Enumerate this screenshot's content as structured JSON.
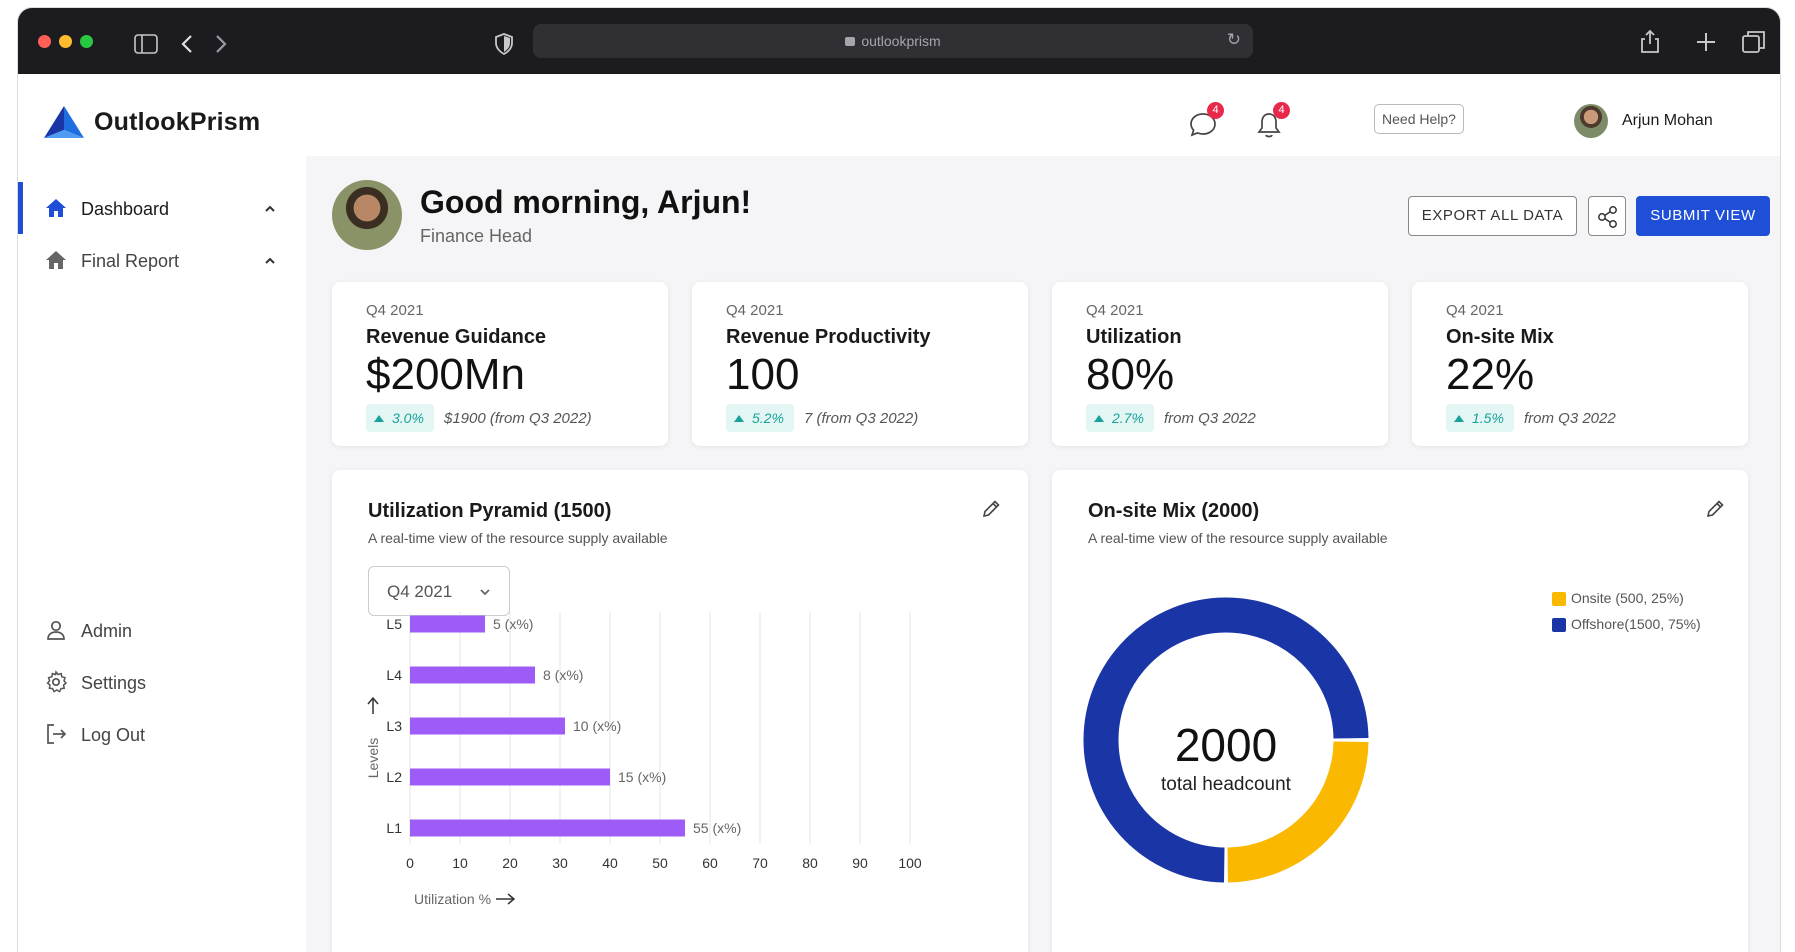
{
  "browser": {
    "url": "outlookprism"
  },
  "app": {
    "brand": "OutlookPrism",
    "brand_color": "#1f4fd6",
    "messages_badge": "4",
    "notifications_badge": "4",
    "help_label": "Need Help?",
    "user_name": "Arjun Mohan"
  },
  "sidebar": {
    "items": [
      {
        "label": "Dashboard",
        "icon": "home-icon"
      },
      {
        "label": "Final Report",
        "icon": "home-icon"
      }
    ],
    "bottom_items": [
      {
        "label": "Admin",
        "icon": "user-icon"
      },
      {
        "label": "Settings",
        "icon": "gear-icon"
      },
      {
        "label": "Log Out",
        "icon": "logout-icon"
      }
    ]
  },
  "header": {
    "greeting": "Good morning, Arjun!",
    "role": "Finance Head",
    "export_label": "EXPORT ALL DATA",
    "submit_label": "SUBMIT VIEW"
  },
  "kpis": [
    {
      "period": "Q4 2021",
      "title": "Revenue Guidance",
      "value": "$200Mn",
      "delta": "3.0%",
      "note": "$1900 (from Q3 2022)"
    },
    {
      "period": "Q4 2021",
      "title": "Revenue Productivity",
      "value": "100",
      "delta": "5.2%",
      "note": "7 (from Q3 2022)"
    },
    {
      "period": "Q4 2021",
      "title": "Utilization",
      "value": "80%",
      "delta": "2.7%",
      "note": "from Q3 2022"
    },
    {
      "period": "Q4 2021",
      "title": "On-site Mix",
      "value": "22%",
      "delta": "1.5%",
      "note": "from Q3 2022"
    }
  ],
  "pyramid_panel": {
    "title": "Utilization Pyramid (1500)",
    "subtitle": "A real-time view of the resource supply available",
    "selected_period": "Q4 2021"
  },
  "mix_panel": {
    "title": "On-site Mix (2000)",
    "subtitle": "A real-time view of the resource supply available",
    "center_value": "2000",
    "center_label": "total headcount"
  },
  "chart_data": [
    {
      "type": "bar",
      "orientation": "horizontal",
      "categories": [
        "L5",
        "L4",
        "L3",
        "L2",
        "L1"
      ],
      "values": [
        15,
        25,
        31,
        40,
        55
      ],
      "data_labels": [
        "5 (x%)",
        "8 (x%)",
        "10 (x%)",
        "15 (x%)",
        "55 (x%)"
      ],
      "xticks": [
        "0",
        "10",
        "20",
        "30",
        "40",
        "50",
        "60",
        "70",
        "80",
        "90",
        "100"
      ],
      "xlim": [
        0,
        100
      ],
      "xlabel": "Utilization %",
      "ylabel": "Levels",
      "grid": "vertical",
      "color": "#9d5cf7"
    },
    {
      "type": "pie",
      "donut": true,
      "series": [
        {
          "name": "Onsite (500, 25%)",
          "value": 25,
          "color": "#fbb800"
        },
        {
          "name": "Offshore(1500, 75%)",
          "value": 75,
          "color": "#1a35a6"
        }
      ],
      "legend": "top-right"
    }
  ]
}
